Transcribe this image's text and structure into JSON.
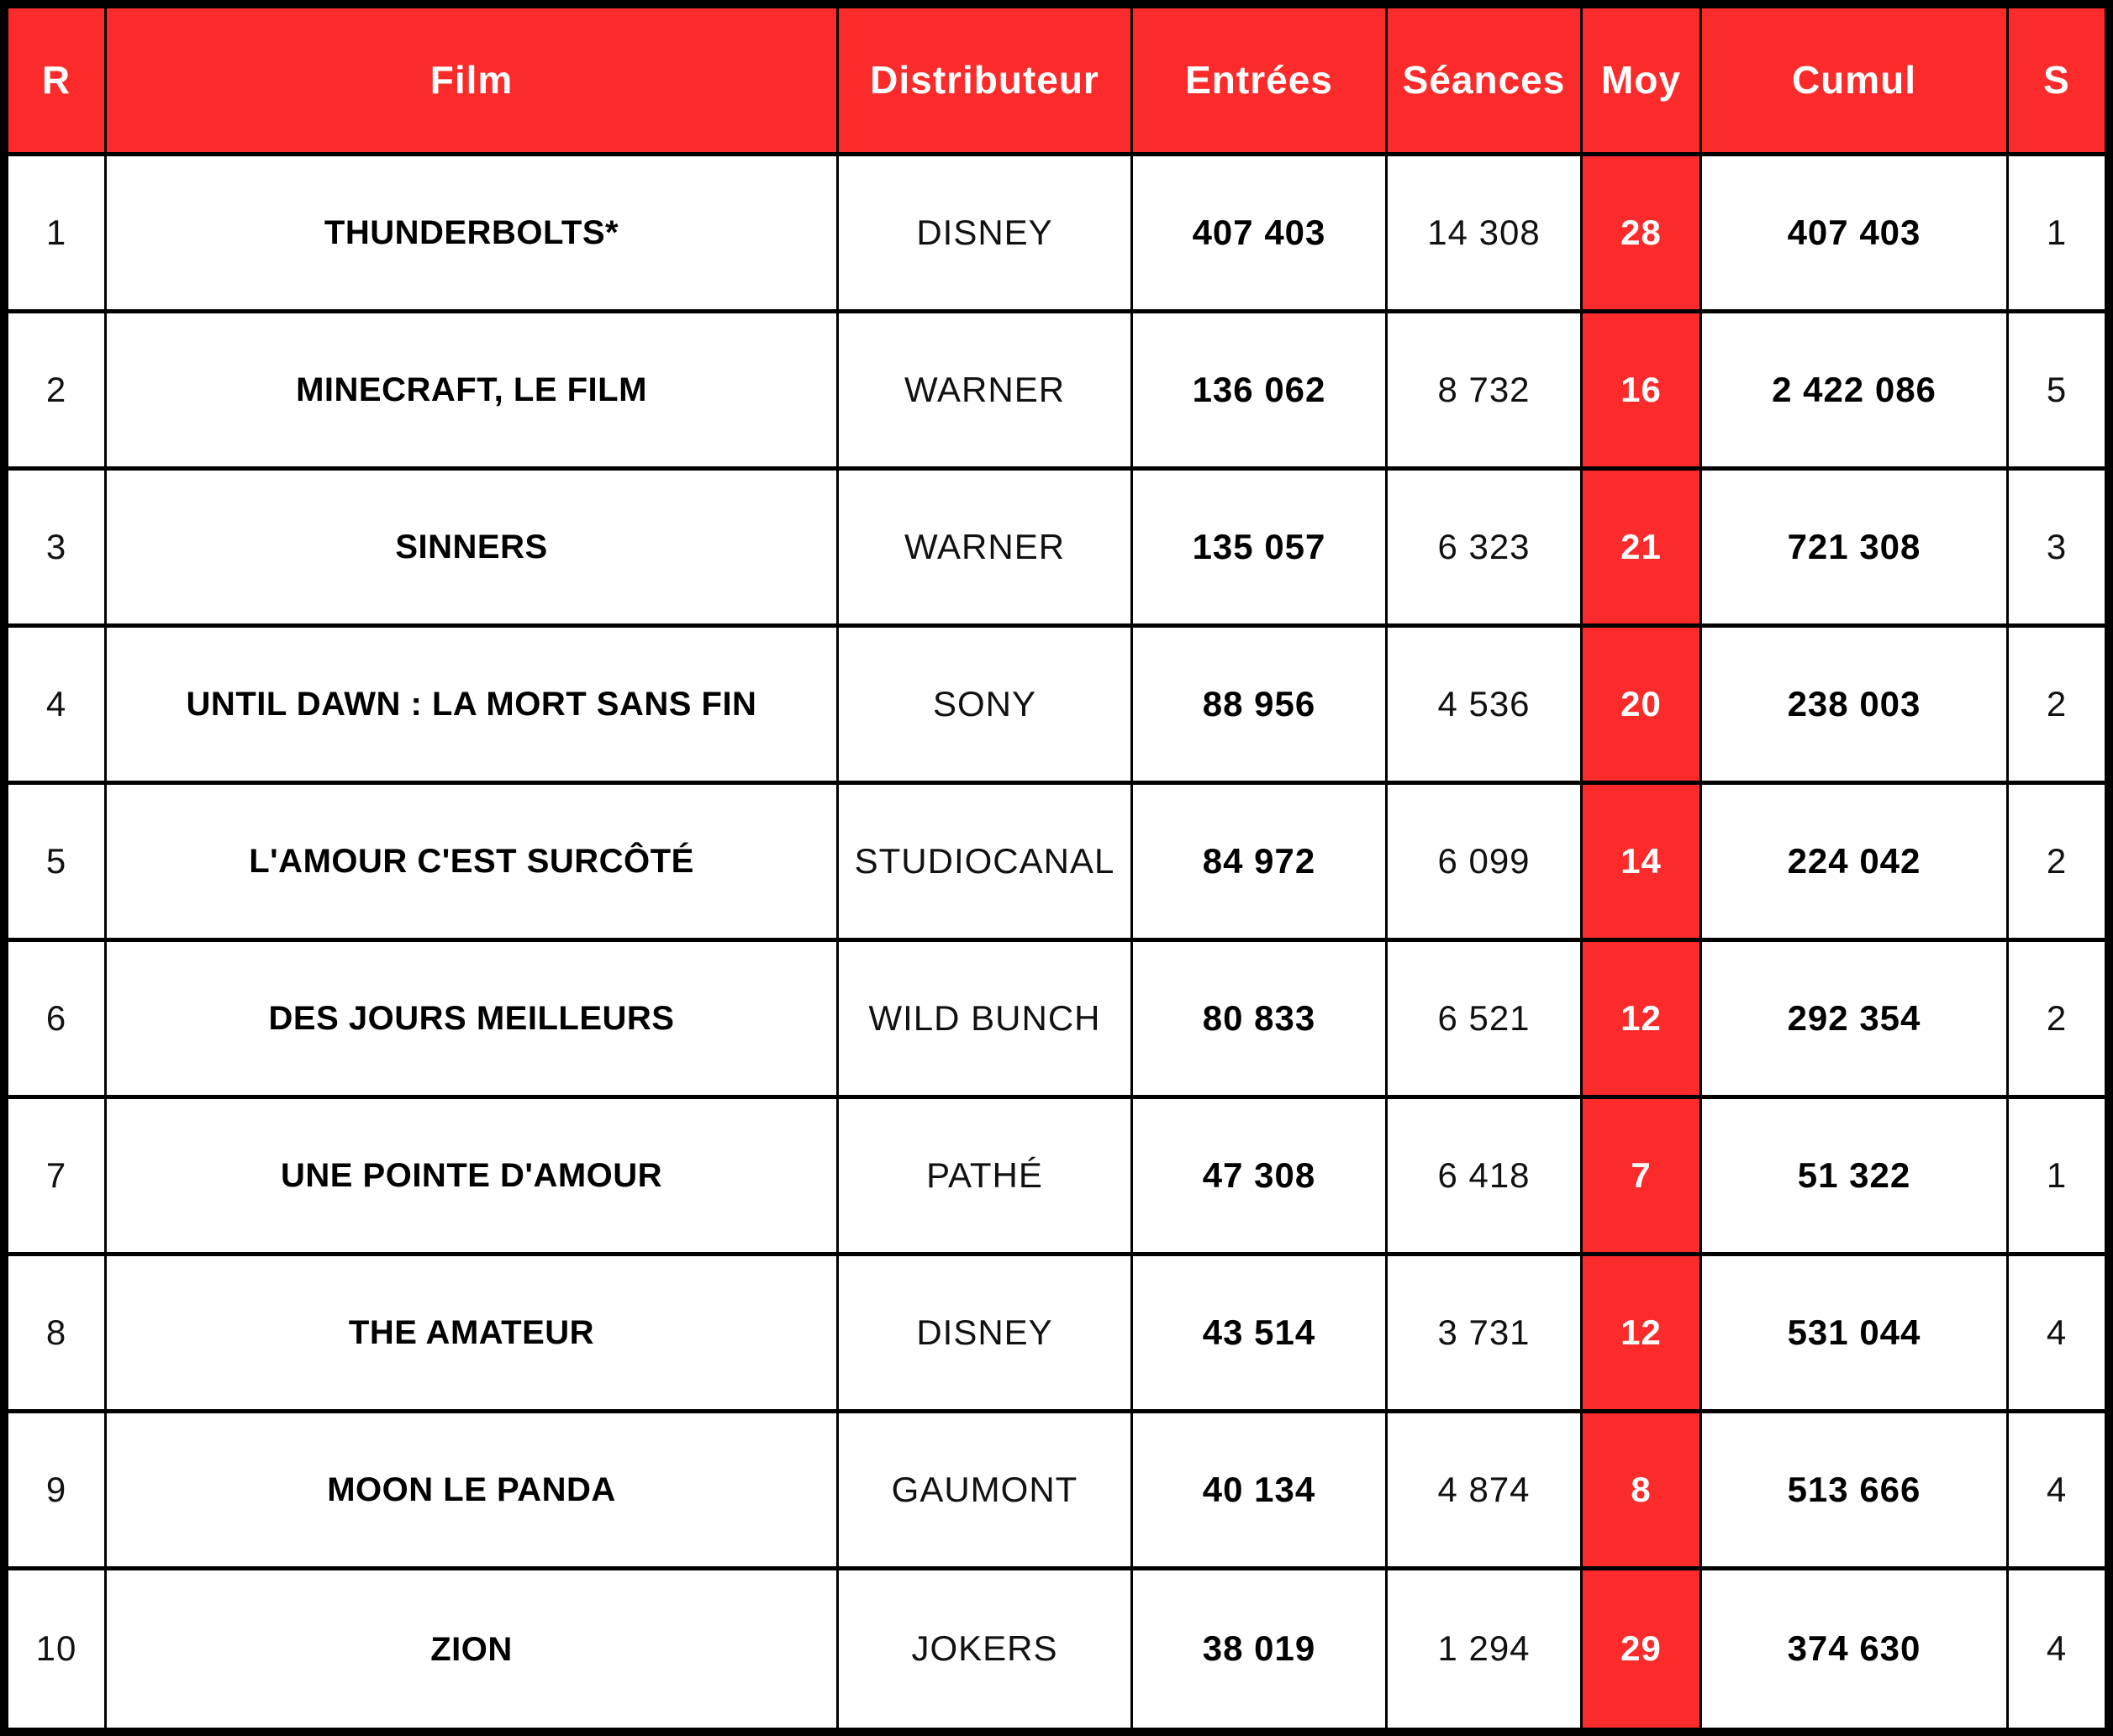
{
  "colors": {
    "accent_red": "#fb2b2b",
    "border_black": "#000000",
    "header_text": "#ffffff",
    "body_text": "#000000"
  },
  "chart_data": {
    "type": "table",
    "columns": [
      "R",
      "Film",
      "Distributeur",
      "Entrées",
      "Séances",
      "Moy",
      "Cumul",
      "S"
    ],
    "rows": [
      [
        "1",
        "THUNDERBOLTS*",
        "DISNEY",
        "407 403",
        "14 308",
        "28",
        "407 403",
        "1"
      ],
      [
        "2",
        "MINECRAFT, LE FILM",
        "WARNER",
        "136 062",
        "8 732",
        "16",
        "2 422 086",
        "5"
      ],
      [
        "3",
        "SINNERS",
        "WARNER",
        "135 057",
        "6 323",
        "21",
        "721 308",
        "3"
      ],
      [
        "4",
        "UNTIL DAWN : LA MORT SANS FIN",
        "SONY",
        "88 956",
        "4 536",
        "20",
        "238 003",
        "2"
      ],
      [
        "5",
        "L'AMOUR C'EST SURCÔTÉ",
        "STUDIOCANAL",
        "84 972",
        "6 099",
        "14",
        "224 042",
        "2"
      ],
      [
        "6",
        "DES JOURS MEILLEURS",
        "WILD BUNCH",
        "80 833",
        "6 521",
        "12",
        "292 354",
        "2"
      ],
      [
        "7",
        "UNE POINTE D'AMOUR",
        "PATHÉ",
        "47 308",
        "6 418",
        "7",
        "51 322",
        "1"
      ],
      [
        "8",
        "THE AMATEUR",
        "DISNEY",
        "43 514",
        "3 731",
        "12",
        "531 044",
        "4"
      ],
      [
        "9",
        "MOON LE PANDA",
        "GAUMONT",
        "40 134",
        "4 874",
        "8",
        "513 666",
        "4"
      ],
      [
        "10",
        "ZION",
        "JOKERS",
        "38 019",
        "1 294",
        "29",
        "374 630",
        "4"
      ]
    ],
    "layout": {
      "header_bg": "#fb2b2b",
      "moy_column_bg": "#fb2b2b",
      "grid": "black solid borders"
    }
  }
}
